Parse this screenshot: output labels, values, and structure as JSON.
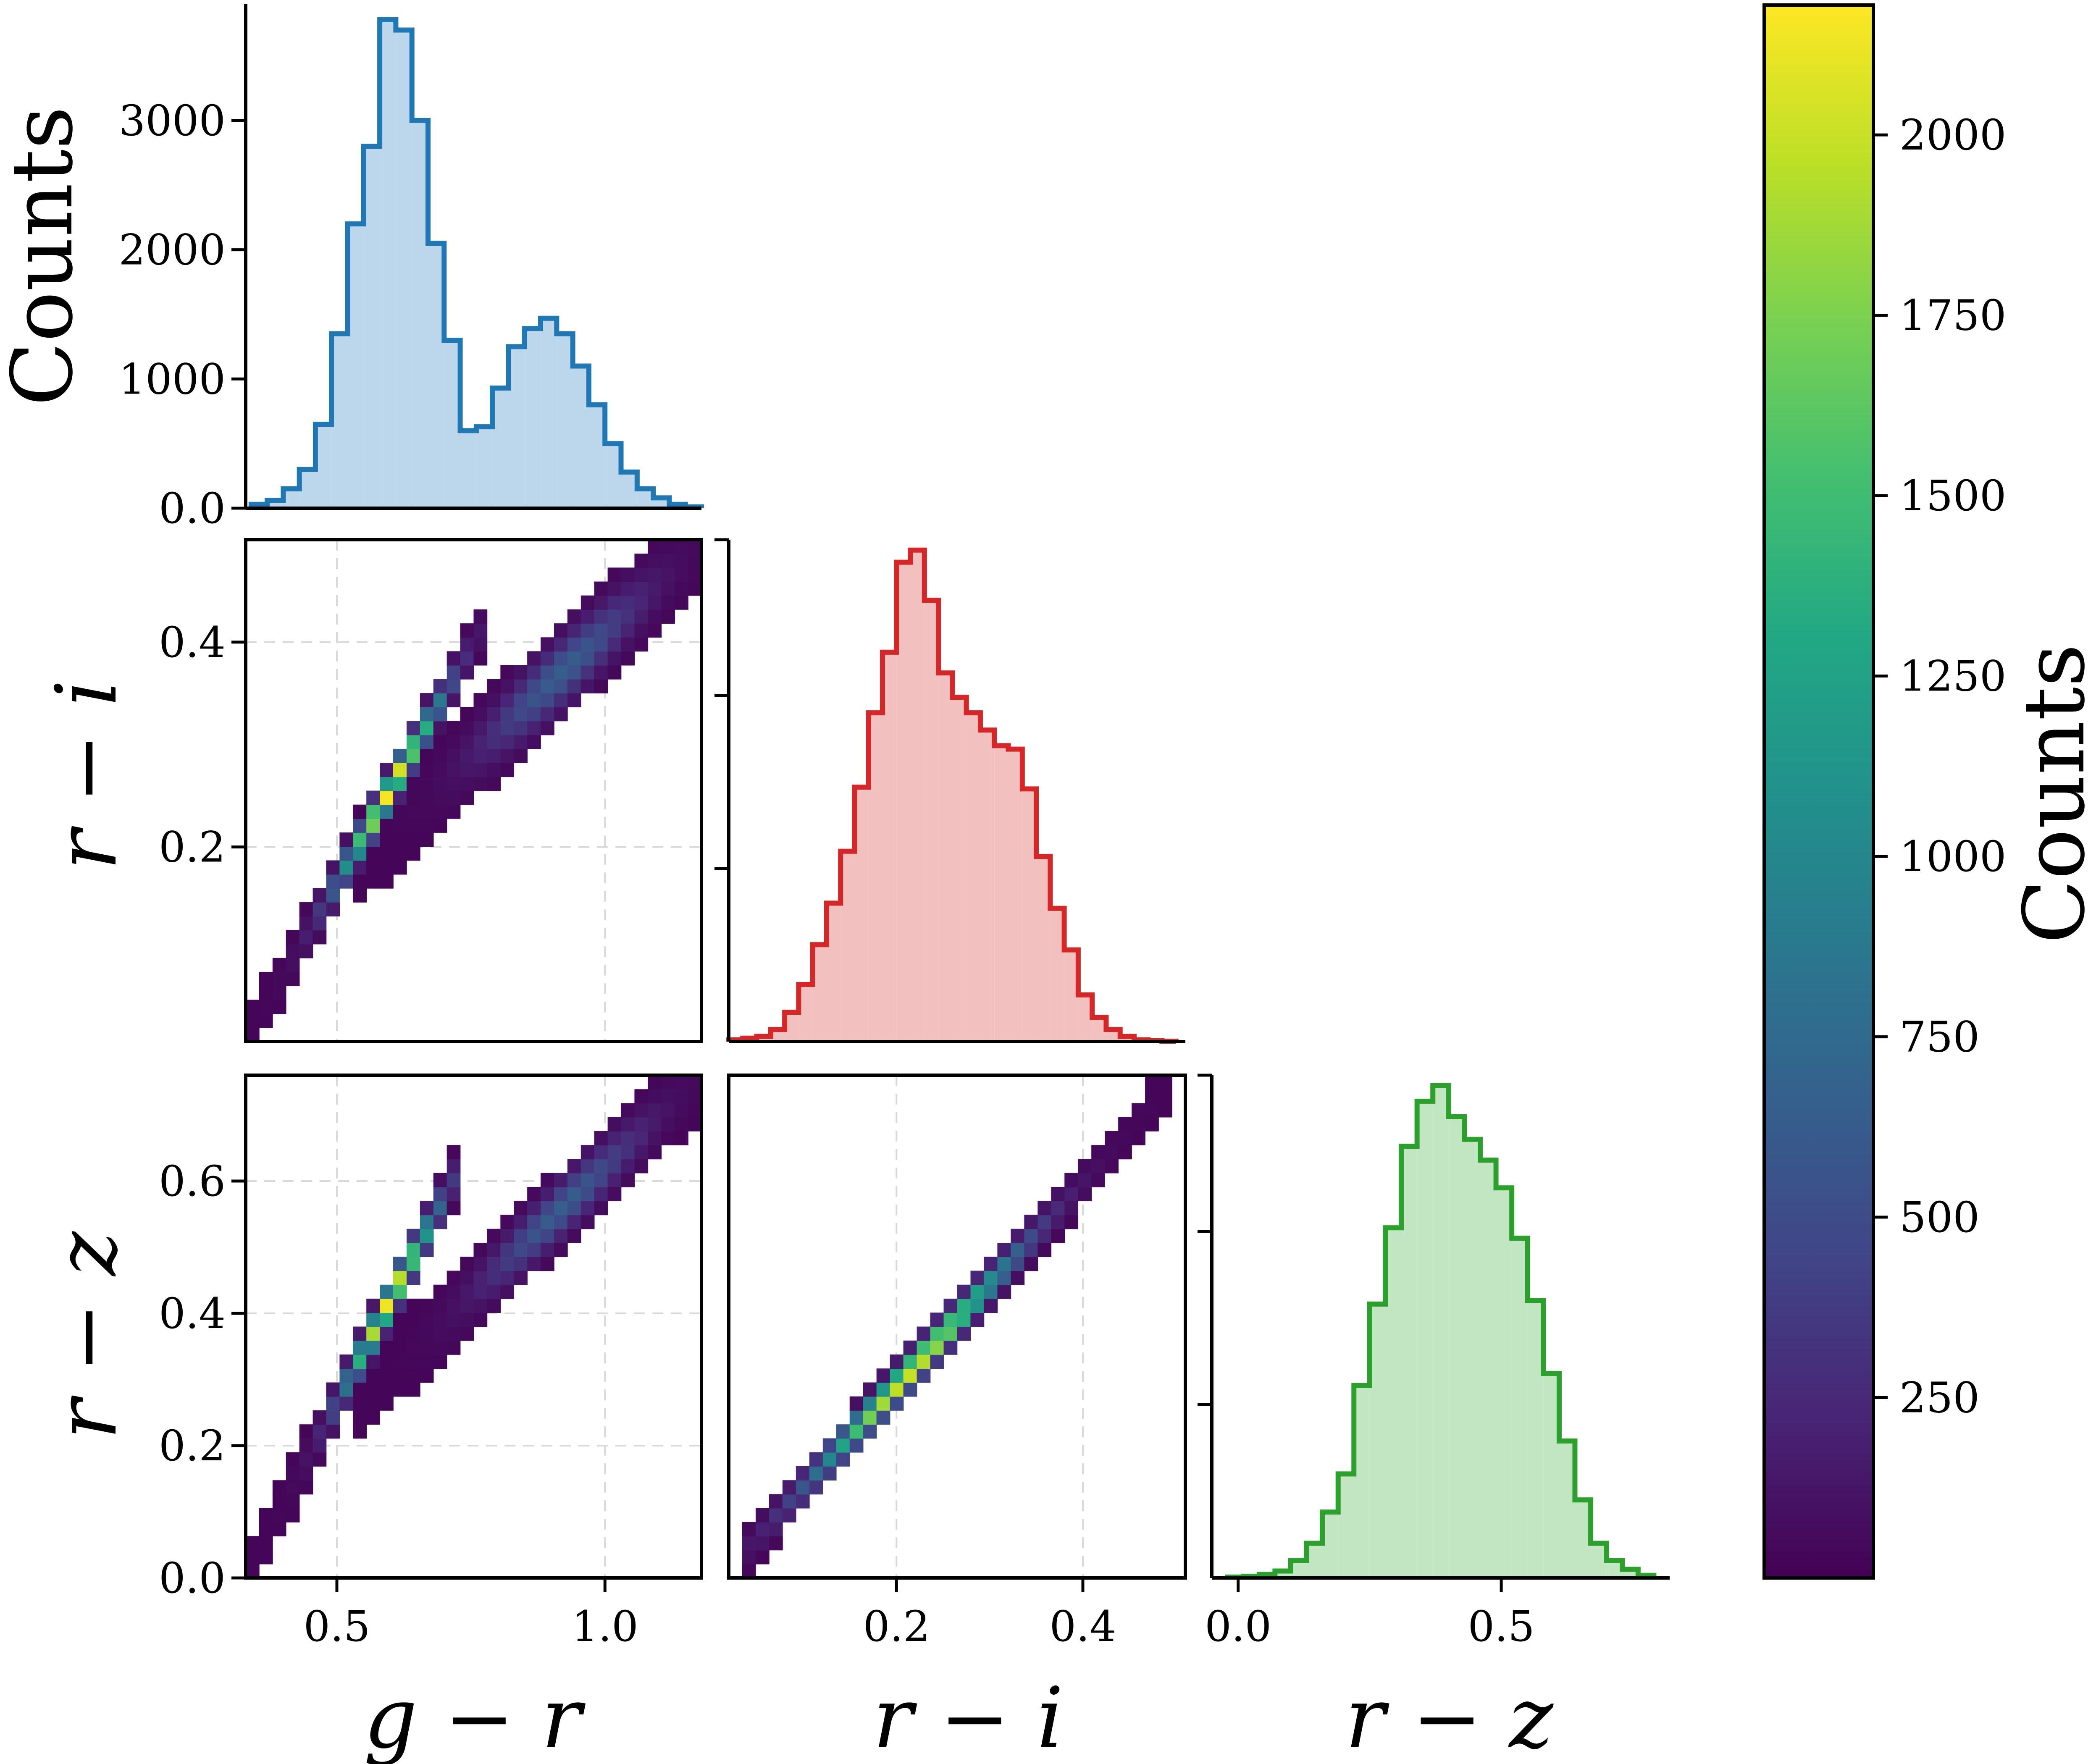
{
  "colors": {
    "gr": "#1f77b4",
    "gr_fill": "#bcd6ec",
    "ri": "#d62728",
    "ri_fill": "#f3c0c0",
    "rz": "#2ca02c",
    "rz_fill": "#c2e5c2"
  },
  "labels": {
    "counts": "Counts",
    "gr": "g − r",
    "ri": "r − i",
    "rz": "r − z",
    "colorbar": "Counts"
  },
  "chart_data": [
    {
      "type": "histogram",
      "panel": "gr-hist",
      "xlim": [
        0.33,
        1.18
      ],
      "ylim": [
        0,
        3900
      ],
      "ylabel": "Counts",
      "yticks": [
        0,
        1000,
        2000,
        3000
      ],
      "xtick_values": [
        0.5,
        1.0
      ],
      "color": "#1f77b4",
      "bin_edges": [
        0.34,
        0.37,
        0.4,
        0.43,
        0.46,
        0.49,
        0.52,
        0.55,
        0.58,
        0.61,
        0.64,
        0.67,
        0.7,
        0.73,
        0.76,
        0.79,
        0.82,
        0.85,
        0.88,
        0.91,
        0.94,
        0.97,
        1.0,
        1.03,
        1.06,
        1.09,
        1.12,
        1.15,
        1.18
      ],
      "values": [
        30,
        60,
        150,
        300,
        650,
        1350,
        2200,
        2800,
        3780,
        3700,
        3000,
        2050,
        1300,
        600,
        630,
        930,
        1250,
        1390,
        1470,
        1350,
        1100,
        800,
        500,
        280,
        150,
        80,
        30,
        10
      ]
    },
    {
      "type": "histogram",
      "panel": "ri-hist",
      "xlim": [
        0.02,
        0.51
      ],
      "ylim": [
        0,
        2900
      ],
      "yticks_unlabeled": [
        1000,
        2000,
        2900
      ],
      "xtick_values": [
        0.2,
        0.4
      ],
      "color": "#d62728",
      "bin_edges": [
        0.02,
        0.035,
        0.05,
        0.065,
        0.08,
        0.095,
        0.11,
        0.125,
        0.14,
        0.155,
        0.17,
        0.185,
        0.2,
        0.215,
        0.23,
        0.245,
        0.26,
        0.275,
        0.29,
        0.305,
        0.32,
        0.335,
        0.35,
        0.365,
        0.38,
        0.395,
        0.41,
        0.425,
        0.44,
        0.455,
        0.47,
        0.485,
        0.5
      ],
      "values": [
        10,
        20,
        30,
        70,
        170,
        330,
        560,
        800,
        1100,
        1470,
        1900,
        2250,
        2770,
        2840,
        2550,
        2130,
        1990,
        1900,
        1800,
        1710,
        1690,
        1460,
        1070,
        770,
        530,
        270,
        140,
        70,
        30,
        10,
        5,
        2
      ]
    },
    {
      "type": "histogram",
      "panel": "rz-hist",
      "xlim": [
        -0.05,
        0.82
      ],
      "ylim": [
        0,
        2900
      ],
      "yticks_unlabeled": [
        1000,
        2000,
        2900
      ],
      "xtick_values": [
        0.0,
        0.5
      ],
      "color": "#2ca02c",
      "bin_edges": [
        -0.02,
        0.01,
        0.04,
        0.07,
        0.1,
        0.13,
        0.16,
        0.19,
        0.22,
        0.25,
        0.28,
        0.31,
        0.34,
        0.37,
        0.4,
        0.43,
        0.46,
        0.49,
        0.52,
        0.55,
        0.58,
        0.61,
        0.64,
        0.67,
        0.7,
        0.73,
        0.76,
        0.79
      ],
      "values": [
        5,
        10,
        20,
        40,
        100,
        200,
        380,
        600,
        1110,
        1580,
        2020,
        2490,
        2750,
        2840,
        2660,
        2530,
        2410,
        2250,
        1960,
        1600,
        1180,
        790,
        450,
        200,
        100,
        50,
        15
      ]
    },
    {
      "type": "heatmap",
      "panel": "gr-vs-ri",
      "xlabel": "",
      "ylabel": "r − i",
      "xlim": [
        0.33,
        1.18
      ],
      "ylim": [
        0.01,
        0.5
      ],
      "xticks": [
        0.5,
        1.0
      ],
      "yticks": [
        0.2,
        0.4
      ],
      "ridges": [
        {
          "x0": 0.34,
          "x1": 0.78,
          "y0": 0.02,
          "y1": 0.42,
          "peak_x": 0.6,
          "peak": 2150,
          "width": 0.028
        },
        {
          "x0": 0.54,
          "x1": 1.17,
          "y0": 0.19,
          "y1": 0.49,
          "peak_x": 0.92,
          "peak": 620,
          "width": 0.05
        }
      ]
    },
    {
      "type": "heatmap",
      "panel": "gr-vs-rz",
      "xlabel": "g − r",
      "ylabel": "r − z",
      "xlim": [
        0.33,
        1.18
      ],
      "ylim": [
        0.0,
        0.76
      ],
      "xticks": [
        0.5,
        1.0
      ],
      "yticks": [
        0.0,
        0.2,
        0.4,
        0.6
      ],
      "ridges": [
        {
          "x0": 0.34,
          "x1": 0.73,
          "y0": 0.02,
          "y1": 0.62,
          "peak_x": 0.6,
          "peak": 2150,
          "width": 0.045
        },
        {
          "x0": 0.54,
          "x1": 1.17,
          "y0": 0.27,
          "y1": 0.75,
          "peak_x": 0.92,
          "peak": 620,
          "width": 0.065
        }
      ]
    },
    {
      "type": "heatmap",
      "panel": "ri-vs-rz",
      "xlabel": "r − i",
      "xlim": [
        0.02,
        0.51
      ],
      "ylim": [
        0.0,
        0.76
      ],
      "xticks": [
        0.2,
        0.4
      ],
      "ridges": [
        {
          "x0": 0.03,
          "x1": 0.5,
          "y0": 0.03,
          "y1": 0.75,
          "peak_x": 0.22,
          "peak": 2150,
          "width": 0.04
        }
      ]
    },
    {
      "type": "colorbar",
      "colormap": "viridis",
      "min": 0,
      "max": 2180,
      "label": "Counts",
      "ticks": [
        250,
        500,
        750,
        1000,
        1250,
        1500,
        1750,
        2000
      ]
    }
  ]
}
